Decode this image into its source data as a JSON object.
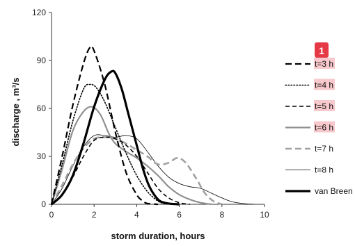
{
  "badge": {
    "label": "1",
    "color": "#e63946",
    "highlight": "#f8c9cc"
  },
  "chart_data": {
    "type": "line",
    "xlabel": "storm duration, hours",
    "ylabel": "discharge , m³/s",
    "xlim": [
      0,
      10
    ],
    "ylim": [
      0,
      120
    ],
    "xticks": [
      "0",
      "2",
      "4",
      "6",
      "8",
      "10"
    ],
    "yticks": [
      "0",
      "30",
      "60",
      "90",
      "120"
    ],
    "grid": false,
    "legend": "right",
    "series": [
      {
        "name": "t=3 h",
        "color": "#000000",
        "dash": "long",
        "width": 2.2,
        "highlighted": true,
        "x": [
          0,
          0.5,
          1.0,
          1.5,
          1.8,
          2.0,
          2.5,
          3.0,
          3.5,
          4.0,
          4.3,
          4.5,
          5.0
        ],
        "y": [
          0,
          30,
          62,
          88,
          98,
          96,
          75,
          45,
          20,
          6,
          2,
          0.5,
          0
        ]
      },
      {
        "name": "t=4 h",
        "color": "#000000",
        "dash": "dot",
        "width": 1.6,
        "highlighted": true,
        "x": [
          0,
          0.5,
          1.0,
          1.5,
          1.8,
          2.1,
          2.5,
          3.0,
          3.5,
          4.0,
          4.5,
          5.0,
          5.3,
          5.5
        ],
        "y": [
          0,
          25,
          52,
          72,
          75,
          73,
          64,
          48,
          32,
          18,
          8,
          2,
          0.5,
          0
        ]
      },
      {
        "name": "t=5 h",
        "color": "#000000",
        "dash": "medium",
        "width": 1.6,
        "highlighted": true,
        "x": [
          0,
          0.5,
          1.0,
          1.5,
          2.0,
          2.5,
          3.0,
          3.5,
          4.0,
          4.5,
          5.0,
          5.5,
          6.0,
          6.5
        ],
        "y": [
          0,
          6,
          17,
          30,
          40,
          42,
          41,
          37,
          30,
          20,
          10,
          4,
          1,
          0
        ]
      },
      {
        "name": "t=6 h",
        "color": "#909090",
        "dash": "solid",
        "width": 2.2,
        "highlighted": true,
        "x": [
          0,
          0.5,
          1.0,
          1.5,
          1.9,
          2.3,
          2.7,
          3.0,
          3.5,
          4.0,
          4.5,
          5.0,
          5.5,
          6.0,
          6.5,
          7.0,
          7.5
        ],
        "y": [
          0,
          22,
          46,
          58,
          61,
          56,
          44,
          38,
          33,
          29,
          24,
          18,
          11,
          6,
          3,
          1,
          0
        ]
      },
      {
        "name": "t=7 h",
        "color": "#a0a0a0",
        "dash": "long",
        "width": 2.6,
        "highlighted": false,
        "x": [
          0,
          0.5,
          1.0,
          1.5,
          2.0,
          2.5,
          3.0,
          3.5,
          4.0,
          4.5,
          5.0,
          5.5,
          5.9,
          6.3,
          6.8,
          7.2,
          7.6,
          8.0
        ],
        "y": [
          0,
          12,
          25,
          35,
          41,
          42,
          41,
          38,
          34,
          30,
          25,
          26,
          29,
          26,
          16,
          7,
          2,
          0
        ]
      },
      {
        "name": "t=8 h",
        "color": "#000000",
        "dash": "solid",
        "width": 0.8,
        "highlighted": false,
        "x": [
          0,
          0.5,
          1.0,
          1.5,
          2.0,
          2.5,
          3.0,
          3.5,
          4.0,
          4.5,
          5.0,
          5.5,
          6.0,
          6.5,
          7.0,
          7.5,
          8.0,
          8.5,
          9.0,
          9.5
        ],
        "y": [
          0,
          10,
          24,
          36,
          43,
          43,
          42,
          43,
          41,
          33,
          24,
          17,
          13,
          11,
          10,
          7,
          4,
          1.5,
          0.5,
          0
        ]
      },
      {
        "name": "van Breen",
        "color": "#000000",
        "dash": "solid",
        "width": 3.2,
        "highlighted": false,
        "x": [
          0,
          0.5,
          1.0,
          1.5,
          2.0,
          2.5,
          2.8,
          3.0,
          3.3,
          3.6,
          4.0,
          4.3,
          4.6,
          5.0,
          5.3,
          5.6,
          6.0
        ],
        "y": [
          0,
          6,
          18,
          38,
          61,
          78,
          83,
          82,
          72,
          57,
          37,
          22,
          11,
          3,
          1,
          0.3,
          0
        ]
      }
    ]
  }
}
